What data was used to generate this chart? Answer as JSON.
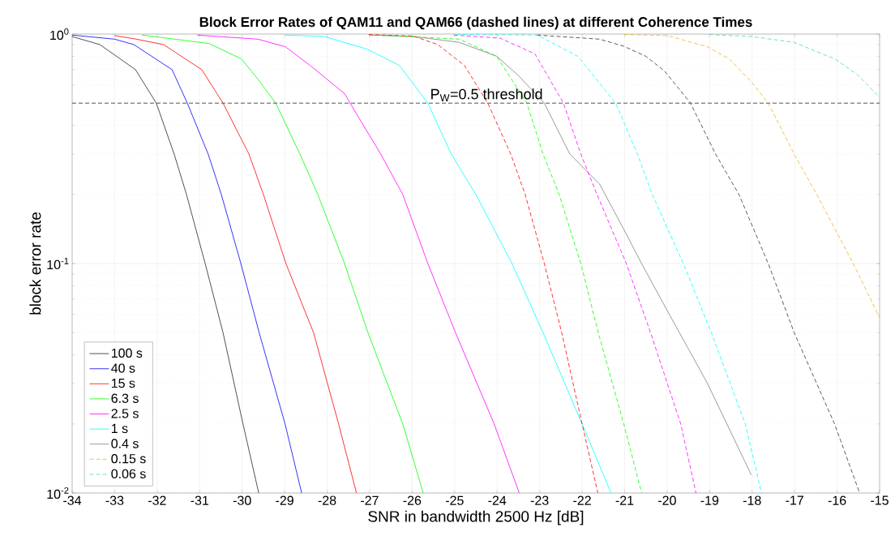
{
  "chart_data": {
    "type": "line",
    "title": "Block Error Rates of QAM11 and QAM66 (dashed lines) at different Coherence Times",
    "xlabel": "SNR in bandwidth 2500 Hz [dB]",
    "ylabel": "block error rate",
    "xlim": [
      -34,
      -15
    ],
    "xticks": [
      -34,
      -33,
      -32,
      -31,
      -30,
      -29,
      -28,
      -27,
      -26,
      -25,
      -24,
      -23,
      -22,
      -21,
      -20,
      -19,
      -18,
      -17,
      -16,
      -15
    ],
    "ylim": [
      0.01,
      1
    ],
    "yticks": [
      {
        "value": 0.01,
        "label": "10$^{-2}$"
      },
      {
        "value": 0.1,
        "label": "10$^{-1}$"
      },
      {
        "value": 1,
        "label": "10$^{0}$"
      }
    ],
    "log": "y",
    "grid": true,
    "legend": "bottom left",
    "ref_lines": [
      {
        "axis": "y",
        "value": 0.5,
        "label": "P$_{W}$=0.5 threshold",
        "color": "#555555",
        "line_style": "dashed"
      }
    ],
    "series": [
      {
        "name": "100 s",
        "color": "#262626",
        "line_style": "solid",
        "x": [
          -34,
          -33.35,
          -32.51,
          -32.02,
          -31.6,
          -31.31,
          -30.87,
          -30.45,
          -29.98,
          -29.61
        ],
        "values": [
          0.975,
          0.9,
          0.7,
          0.5,
          0.3,
          0.2,
          0.1,
          0.05,
          0.02,
          0.01
        ]
      },
      {
        "name": "40 s",
        "color": "#0000ff",
        "line_style": "solid",
        "x": [
          -34,
          -33,
          -32.55,
          -31.65,
          -31.29,
          -30.8,
          -30.49,
          -30.03,
          -29.6,
          -28.99,
          -28.6
        ],
        "values": [
          0.99,
          0.95,
          0.9,
          0.7,
          0.5,
          0.3,
          0.2,
          0.1,
          0.05,
          0.02,
          0.01
        ]
      },
      {
        "name": "15 s",
        "color": "#ff0000",
        "line_style": "solid",
        "x": [
          -33,
          -32.49,
          -31.85,
          -30.95,
          -30.45,
          -29.84,
          -29.5,
          -28.97,
          -28.32,
          -27.73,
          -27.31
        ],
        "values": [
          0.985,
          0.95,
          0.9,
          0.7,
          0.5,
          0.3,
          0.2,
          0.1,
          0.05,
          0.02,
          0.01
        ]
      },
      {
        "name": "6.3 s",
        "color": "#00ff00",
        "line_style": "solid",
        "x": [
          -32.36,
          -30.78,
          -30.02,
          -29.64,
          -29.21,
          -28.64,
          -28.22,
          -27.59,
          -27.04,
          -26.22,
          -25.74
        ],
        "values": [
          0.99,
          0.91,
          0.78,
          0.64,
          0.5,
          0.3,
          0.2,
          0.1,
          0.05,
          0.02,
          0.01
        ]
      },
      {
        "name": "2.5 s",
        "color": "#ff00ff",
        "line_style": "solid",
        "x": [
          -31.06,
          -29.63,
          -28.98,
          -28.36,
          -27.59,
          -27.46,
          -26.74,
          -26.22,
          -25.63,
          -24.98,
          -24.07,
          -23.48
        ],
        "values": [
          0.99,
          0.95,
          0.88,
          0.72,
          0.55,
          0.5,
          0.3,
          0.2,
          0.1,
          0.05,
          0.02,
          0.01
        ]
      },
      {
        "name": "1 s",
        "color": "#00ffff",
        "line_style": "solid",
        "x": [
          -28.98,
          -28.07,
          -27.06,
          -26.3,
          -25.63,
          -25.08,
          -24.5,
          -23.65,
          -22.92,
          -22.0,
          -21.32
        ],
        "values": [
          0.99,
          0.976,
          0.86,
          0.73,
          0.5,
          0.3,
          0.2,
          0.1,
          0.05,
          0.02,
          0.01
        ]
      },
      {
        "name": "0.4 s",
        "color": "#808080",
        "line_style": "solid",
        "x": [
          -27.02,
          -25.97,
          -24.89,
          -24.01,
          -23.5,
          -22.89,
          -22.29,
          -21.59,
          -21.02,
          -20.6,
          -20.0,
          -19.05,
          -18.02
        ],
        "values": [
          0.99,
          0.976,
          0.92,
          0.8,
          0.66,
          0.5,
          0.3,
          0.222,
          0.141,
          0.1,
          0.0625,
          0.03,
          0.012
        ]
      },
      {
        "color": "#ff0000",
        "line_style": "dashed",
        "x": [
          -27.02,
          -25.97,
          -25.4,
          -24.77,
          -24.22,
          -23.68,
          -23.34,
          -22.89,
          -22.48,
          -22.0,
          -21.63
        ],
        "values": [
          0.995,
          0.98,
          0.9,
          0.73,
          0.5,
          0.3,
          0.2,
          0.1,
          0.05,
          0.02,
          0.01
        ]
      },
      {
        "color": "#00ff00",
        "line_style": "dashed",
        "x": [
          -26.8,
          -24.89,
          -24.01,
          -23.3,
          -22.92,
          -22.54,
          -22.03,
          -21.62,
          -21.02,
          -20.6
        ],
        "values": [
          0.99,
          0.95,
          0.8,
          0.5,
          0.3,
          0.2,
          0.1,
          0.05,
          0.02,
          0.01
        ]
      },
      {
        "color": "#ff00ff",
        "line_style": "dashed",
        "x": [
          -25.02,
          -23.93,
          -23.11,
          -22.44,
          -22.03,
          -21.65,
          -20.96,
          -20.39,
          -19.68,
          -19.32
        ],
        "values": [
          0.99,
          0.96,
          0.82,
          0.5,
          0.3,
          0.2,
          0.1,
          0.05,
          0.02,
          0.01
        ]
      },
      {
        "color": "#00ffff",
        "line_style": "dashed",
        "x": [
          -24.96,
          -23.06,
          -22.1,
          -21.21,
          -20.7,
          -20.35,
          -19.62,
          -18.96,
          -18.16,
          -17.78
        ],
        "values": [
          0.995,
          0.99,
          0.8,
          0.5,
          0.3,
          0.2,
          0.1,
          0.05,
          0.02,
          0.01
        ]
      },
      {
        "color": "#333333",
        "line_style": "dashed",
        "x": [
          -23.06,
          -21.59,
          -21.02,
          -20.5,
          -20.06,
          -19.45,
          -18.86,
          -18.31,
          -17.62,
          -17.01,
          -16.06,
          -15.47
        ],
        "values": [
          0.99,
          0.95,
          0.885,
          0.8,
          0.69,
          0.5,
          0.3,
          0.2,
          0.1,
          0.05,
          0.02,
          0.01
        ]
      },
      {
        "name": "0.15 s",
        "color": "#edb120",
        "line_style": "dashed",
        "x": [
          -21.02,
          -20.0,
          -19.05,
          -18.54,
          -18.02,
          -17.62,
          -17.01,
          -16.48,
          -15.62,
          -15.0
        ],
        "values": [
          0.995,
          0.985,
          0.88,
          0.78,
          0.62,
          0.5,
          0.3,
          0.2,
          0.1,
          0.058
        ]
      },
      {
        "name": "0.06 s",
        "color": "#4dd9a6",
        "line_style": "dashed",
        "x": [
          -19.01,
          -18.02,
          -17.01,
          -16.06,
          -15.54,
          -15.0
        ],
        "values": [
          0.995,
          0.976,
          0.92,
          0.78,
          0.67,
          0.53
        ]
      }
    ]
  }
}
